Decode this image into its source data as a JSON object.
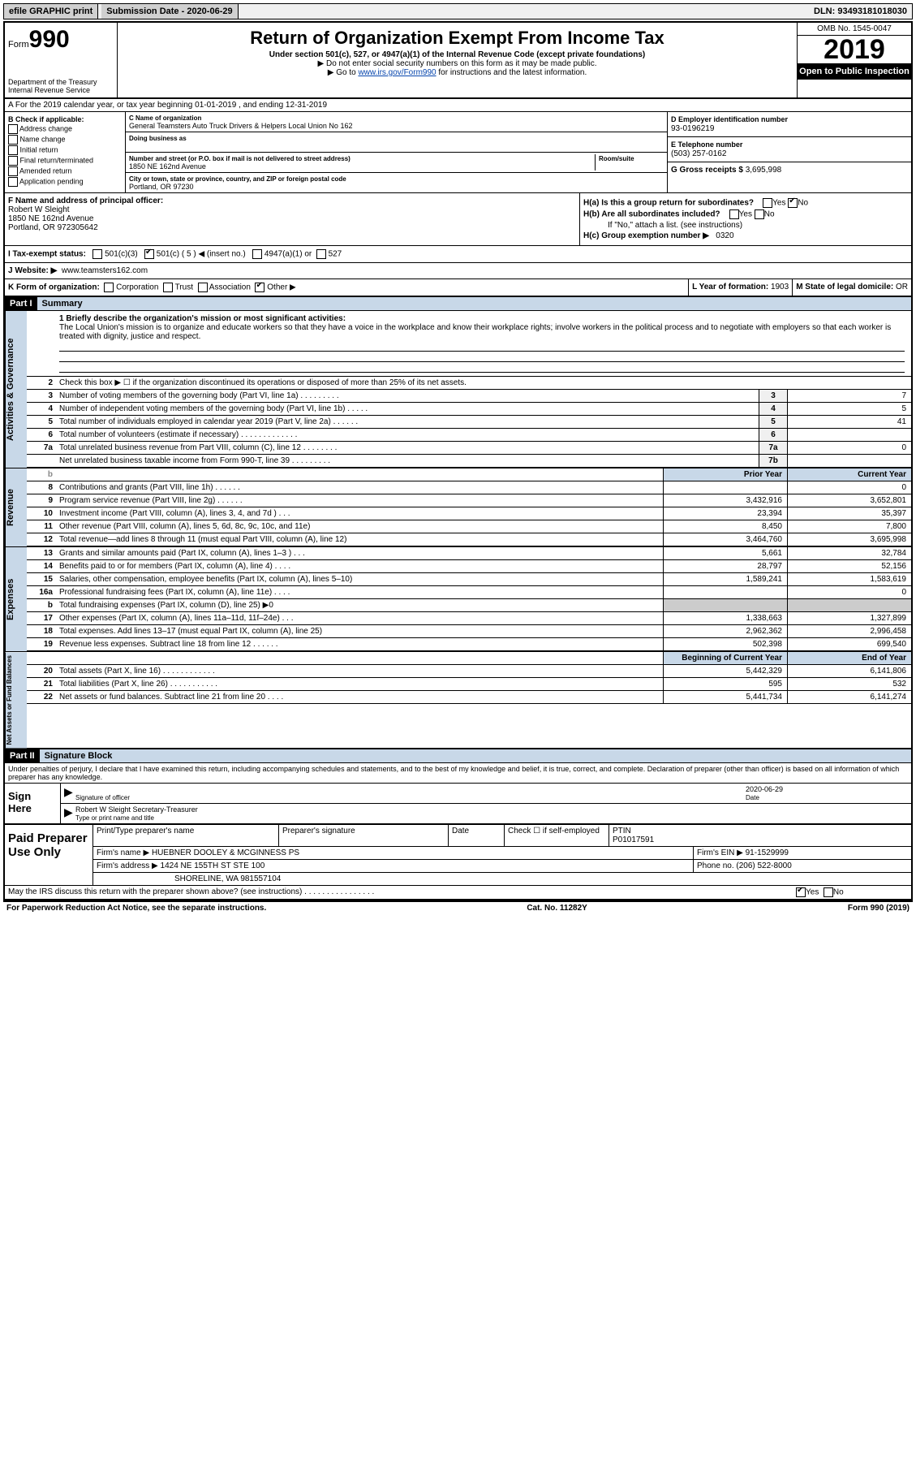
{
  "topbar": {
    "efile": "efile GRAPHIC print",
    "subdate_lbl": "Submission Date - ",
    "subdate": "2020-06-29",
    "dln_lbl": "DLN: ",
    "dln": "93493181018030"
  },
  "header": {
    "form_word": "Form",
    "form_num": "990",
    "dept": "Department of the Treasury\nInternal Revenue Service",
    "title": "Return of Organization Exempt From Income Tax",
    "subtitle": "Under section 501(c), 527, or 4947(a)(1) of the Internal Revenue Code (except private foundations)",
    "note1": "▶ Do not enter social security numbers on this form as it may be made public.",
    "note2_pre": "▶ Go to ",
    "note2_link": "www.irs.gov/Form990",
    "note2_post": " for instructions and the latest information.",
    "omb": "OMB No. 1545-0047",
    "year": "2019",
    "inspect": "Open to Public Inspection"
  },
  "line_a": "A For the 2019 calendar year, or tax year beginning 01-01-2019   , and ending 12-31-2019",
  "col_b": {
    "hdr": "B Check if applicable:",
    "opts": [
      "Address change",
      "Name change",
      "Initial return",
      "Final return/terminated",
      "Amended return",
      "Application pending"
    ]
  },
  "col_c": {
    "name_lbl": "C Name of organization",
    "name": "General Teamsters Auto Truck Drivers & Helpers Local Union No 162",
    "dba_lbl": "Doing business as",
    "dba": "",
    "addr_lbl": "Number and street (or P.O. box if mail is not delivered to street address)",
    "addr": "1850 NE 162nd Avenue",
    "room_lbl": "Room/suite",
    "city_lbl": "City or town, state or province, country, and ZIP or foreign postal code",
    "city": "Portland, OR  97230"
  },
  "col_d": {
    "lbl": "D Employer identification number",
    "val": "93-0196219"
  },
  "col_e": {
    "lbl": "E Telephone number",
    "val": "(503) 257-0162"
  },
  "col_g": {
    "lbl": "G Gross receipts $ ",
    "val": "3,695,998"
  },
  "col_f": {
    "lbl": "F  Name and address of principal officer:",
    "name": "Robert W Sleight",
    "addr1": "1850 NE 162nd Avenue",
    "addr2": "Portland, OR  972305642"
  },
  "col_h": {
    "a_lbl": "H(a)  Is this a group return for subordinates?",
    "a_yes": "Yes",
    "a_no": "No",
    "b_lbl": "H(b)  Are all subordinates included?",
    "b_note": "If \"No,\" attach a list. (see instructions)",
    "c_lbl": "H(c)  Group exemption number ▶",
    "c_val": "0320"
  },
  "line_i": {
    "lbl": "I   Tax-exempt status:",
    "o1": "501(c)(3)",
    "o2": "501(c) ( 5 ) ◀ (insert no.)",
    "o3": "4947(a)(1) or",
    "o4": "527"
  },
  "line_j": {
    "lbl": "J   Website: ▶",
    "val": "www.teamsters162.com"
  },
  "line_k": {
    "lbl": "K Form of organization:",
    "o1": "Corporation",
    "o2": "Trust",
    "o3": "Association",
    "o4": "Other ▶",
    "l_lbl": "L Year of formation: ",
    "l_val": "1903",
    "m_lbl": "M State of legal domicile: ",
    "m_val": "OR"
  },
  "part1": {
    "num": "Part I",
    "title": "Summary",
    "q1_lbl": "1  Briefly describe the organization's mission or most significant activities:",
    "q1_text": "The Local Union's mission is to organize and educate workers so that they have a voice in the workplace and know their workplace rights; involve workers in the political process and to negotiate with employers so that each worker is treated with dignity, justice and respect.",
    "q2": "Check this box ▶ ☐  if the organization discontinued its operations or disposed of more than 25% of its net assets.",
    "prior_hdr": "Prior Year",
    "curr_hdr": "Current Year",
    "boy_hdr": "Beginning of Current Year",
    "eoy_hdr": "End of Year",
    "gov_label": "Activities & Governance",
    "rev_label": "Revenue",
    "exp_label": "Expenses",
    "net_label": "Net Assets or Fund Balances"
  },
  "gov_lines": [
    {
      "n": "3",
      "d": "Number of voting members of the governing body (Part VI, line 1a)  .   .   .   .   .   .   .   .   .",
      "box": "3",
      "v": "7"
    },
    {
      "n": "4",
      "d": "Number of independent voting members of the governing body (Part VI, line 1b)  .   .   .   .   .",
      "box": "4",
      "v": "5"
    },
    {
      "n": "5",
      "d": "Total number of individuals employed in calendar year 2019 (Part V, line 2a)  .   .   .   .   .   .",
      "box": "5",
      "v": "41"
    },
    {
      "n": "6",
      "d": "Total number of volunteers (estimate if necessary)   .   .   .   .   .   .   .   .   .   .   .   .   .",
      "box": "6",
      "v": ""
    },
    {
      "n": "7a",
      "d": "Total unrelated business revenue from Part VIII, column (C), line 12   .   .   .   .   .   .   .   .",
      "box": "7a",
      "v": "0"
    },
    {
      "n": "",
      "d": "Net unrelated business taxable income from Form 990-T, line 39   .   .   .   .   .   .   .   .   .",
      "box": "7b",
      "v": ""
    }
  ],
  "rev_lines": [
    {
      "n": "8",
      "d": "Contributions and grants (Part VIII, line 1h)   .   .   .   .   .   .",
      "p": "",
      "c": "0"
    },
    {
      "n": "9",
      "d": "Program service revenue (Part VIII, line 2g)   .   .   .   .   .   .",
      "p": "3,432,916",
      "c": "3,652,801"
    },
    {
      "n": "10",
      "d": "Investment income (Part VIII, column (A), lines 3, 4, and 7d )   .   .   .",
      "p": "23,394",
      "c": "35,397"
    },
    {
      "n": "11",
      "d": "Other revenue (Part VIII, column (A), lines 5, 6d, 8c, 9c, 10c, and 11e)",
      "p": "8,450",
      "c": "7,800"
    },
    {
      "n": "12",
      "d": "Total revenue—add lines 8 through 11 (must equal Part VIII, column (A), line 12)",
      "p": "3,464,760",
      "c": "3,695,998"
    }
  ],
  "exp_lines": [
    {
      "n": "13",
      "d": "Grants and similar amounts paid (Part IX, column (A), lines 1–3 )   .   .   .",
      "p": "5,661",
      "c": "32,784"
    },
    {
      "n": "14",
      "d": "Benefits paid to or for members (Part IX, column (A), line 4)   .   .   .   .",
      "p": "28,797",
      "c": "52,156"
    },
    {
      "n": "15",
      "d": "Salaries, other compensation, employee benefits (Part IX, column (A), lines 5–10)",
      "p": "1,589,241",
      "c": "1,583,619"
    },
    {
      "n": "16a",
      "d": "Professional fundraising fees (Part IX, column (A), line 11e)   .   .   .   .",
      "p": "",
      "c": "0"
    },
    {
      "n": "b",
      "d": "Total fundraising expenses (Part IX, column (D), line 25) ▶0",
      "p": "grey",
      "c": "grey"
    },
    {
      "n": "17",
      "d": "Other expenses (Part IX, column (A), lines 11a–11d, 11f–24e)   .   .   .",
      "p": "1,338,663",
      "c": "1,327,899"
    },
    {
      "n": "18",
      "d": "Total expenses. Add lines 13–17 (must equal Part IX, column (A), line 25)",
      "p": "2,962,362",
      "c": "2,996,458"
    },
    {
      "n": "19",
      "d": "Revenue less expenses. Subtract line 18 from line 12  .   .   .   .   .   .",
      "p": "502,398",
      "c": "699,540"
    }
  ],
  "net_lines": [
    {
      "n": "20",
      "d": "Total assets (Part X, line 16)  .   .   .   .   .   .   .   .   .   .   .   .",
      "p": "5,442,329",
      "c": "6,141,806"
    },
    {
      "n": "21",
      "d": "Total liabilities (Part X, line 26)  .   .   .   .   .   .   .   .   .   .   .",
      "p": "595",
      "c": "532"
    },
    {
      "n": "22",
      "d": "Net assets or fund balances. Subtract line 21 from line 20   .   .   .   .",
      "p": "5,441,734",
      "c": "6,141,274"
    }
  ],
  "part2": {
    "num": "Part II",
    "title": "Signature Block"
  },
  "penalties": "Under penalties of perjury, I declare that I have examined this return, including accompanying schedules and statements, and to the best of my knowledge and belief, it is true, correct, and complete. Declaration of preparer (other than officer) is based on all information of which preparer has any knowledge.",
  "sign": {
    "here": "Sign Here",
    "sig_lbl": "Signature of officer",
    "date_lbl": "Date",
    "date": "2020-06-29",
    "name": "Robert W Sleight  Secretary-Treasurer",
    "name_lbl": "Type or print name and title"
  },
  "paid": {
    "lbl": "Paid Preparer Use Only",
    "r1": {
      "c1": "Print/Type preparer's name",
      "c2": "Preparer's signature",
      "c3": "Date",
      "c4_lbl": "Check ☐ if self-employed",
      "c5_lbl": "PTIN",
      "c5": "P01017591"
    },
    "r2": {
      "c1_lbl": "Firm's name      ▶",
      "c1": "HUEBNER DOOLEY & MCGINNESS PS",
      "c2_lbl": "Firm's EIN ▶",
      "c2": "91-1529999"
    },
    "r3": {
      "c1_lbl": "Firm's address  ▶",
      "c1": "1424 NE 155TH ST STE 100",
      "c2_lbl": "Phone no. ",
      "c2": "(206) 522-8000"
    },
    "r4": {
      "c1": "SHORELINE, WA  981557104"
    }
  },
  "discuss": {
    "q": "May the IRS discuss this return with the preparer shown above? (see instructions)   .   .   .   .   .   .   .   .   .   .   .   .   .   .   .   .",
    "yes": "Yes",
    "no": "No"
  },
  "foot": {
    "l": "For Paperwork Reduction Act Notice, see the separate instructions.",
    "c": "Cat. No. 11282Y",
    "r": "Form 990 (2019)"
  }
}
